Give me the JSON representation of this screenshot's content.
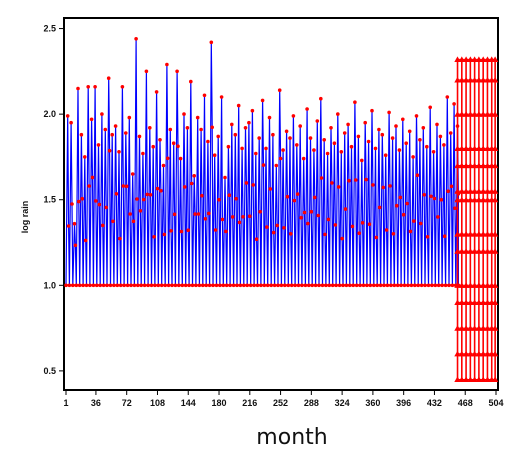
{
  "chart_data": {
    "type": "line",
    "xlabel": "month",
    "ylabel": "log rain",
    "xlim": [
      1,
      504
    ],
    "ylim": [
      0.4,
      2.55
    ],
    "x_ticks": [
      "1",
      "36",
      "72",
      "108",
      "144",
      "180",
      "216",
      "252",
      "288",
      "324",
      "360",
      "396",
      "432",
      "468",
      "504"
    ],
    "y_ticks": [
      "0.5",
      "1.0",
      "1.5",
      "2.0",
      "2.5"
    ],
    "grid": false,
    "colors": {
      "line": "#0000ff",
      "marker": "#ff0000",
      "axis": "#000000"
    },
    "observed": {
      "x_start": 1,
      "x_end": 460,
      "x_step": 4,
      "baseline": 1.0,
      "peaks": [
        1.99,
        1.95,
        1.36,
        2.15,
        1.88,
        1.75,
        2.16,
        1.97,
        2.16,
        1.82,
        2.0,
        1.91,
        2.21,
        1.88,
        1.93,
        1.78,
        2.16,
        1.89,
        1.98,
        1.65,
        2.44,
        1.87,
        1.77,
        2.25,
        1.92,
        1.81,
        2.13,
        1.85,
        1.7,
        2.29,
        1.91,
        1.83,
        2.25,
        1.74,
        2.0,
        1.92,
        2.19,
        1.64,
        1.98,
        1.91,
        2.11,
        1.84,
        2.42,
        1.76,
        1.87,
        2.1,
        1.63,
        1.81,
        1.94,
        1.88,
        2.05,
        1.8,
        1.92,
        1.95,
        2.02,
        1.77,
        1.86,
        2.08,
        1.8,
        1.98,
        1.88,
        1.7,
        2.14,
        1.79,
        1.9,
        1.86,
        1.99,
        1.82,
        1.93,
        1.74,
        2.03,
        1.86,
        1.79,
        1.96,
        2.09,
        1.85,
        1.77,
        1.92,
        1.83,
        2.0,
        1.78,
        1.89,
        1.94,
        1.81,
        2.07,
        1.87,
        1.73,
        1.95,
        1.84,
        2.02,
        1.8,
        1.91,
        1.88,
        1.76,
        2.01,
        1.86,
        1.93,
        1.79,
        1.97,
        1.83,
        1.9,
        1.75,
        1.99,
        1.85,
        1.92,
        1.81,
        2.04,
        1.78,
        1.94,
        1.87,
        1.82,
        2.1,
        1.89,
        2.06,
        1.93
      ]
    },
    "simulated": {
      "x": [
        459,
        464,
        469,
        474,
        479,
        484,
        489,
        494,
        499,
        503
      ],
      "low": 0.45,
      "high": 2.32,
      "levels": [
        0.45,
        0.6,
        0.75,
        0.9,
        1.0,
        1.2,
        1.3,
        1.5,
        1.55,
        1.7,
        1.8,
        2.0,
        2.2,
        2.32
      ]
    }
  }
}
